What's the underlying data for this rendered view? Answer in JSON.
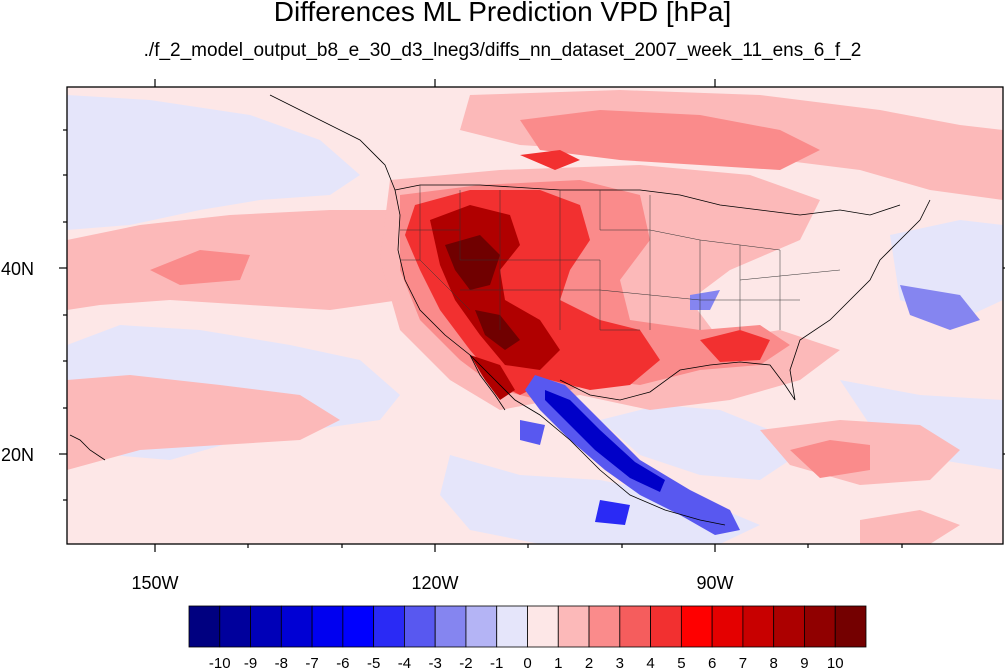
{
  "title": "Differences ML Prediction VPD [hPa]",
  "subtitle": "./f_2_model_output_b8_e_30_d3_lneg3/diffs_nn_dataset_2007_week_11_ens_6_f_2",
  "x_ticks": [
    "150W",
    "120W",
    "90W"
  ],
  "y_ticks": [
    "40N",
    "20N"
  ],
  "colorbar": {
    "labels": [
      "-10",
      "-9",
      "-8",
      "-7",
      "-6",
      "-5",
      "-4",
      "-3",
      "-2",
      "-1",
      "0",
      "1",
      "2",
      "3",
      "4",
      "5",
      "6",
      "7",
      "8",
      "9",
      "10"
    ],
    "colors": [
      "#000080",
      "#00009c",
      "#0000b8",
      "#0000d4",
      "#0000f0",
      "#0000ff",
      "#2a2af5",
      "#5858f0",
      "#8585f0",
      "#b4b4f5",
      "#e5e5fa",
      "#fde7e7",
      "#fcb9b9",
      "#fa8b8b",
      "#f55d5d",
      "#f23030",
      "#ff0000",
      "#e40000",
      "#c80000",
      "#ac0000",
      "#900000",
      "#740000"
    ]
  },
  "map_palette": {
    "ocean_background": "#fde7e7",
    "light_blue": "#e5e5fa",
    "pink": "#fcb9b9",
    "salmon": "#fa8b8b",
    "red": "#f23030",
    "dark_red": "#b00000",
    "deep_red": "#700000",
    "blue": "#2a2af5",
    "dark_blue": "#0000c8"
  }
}
